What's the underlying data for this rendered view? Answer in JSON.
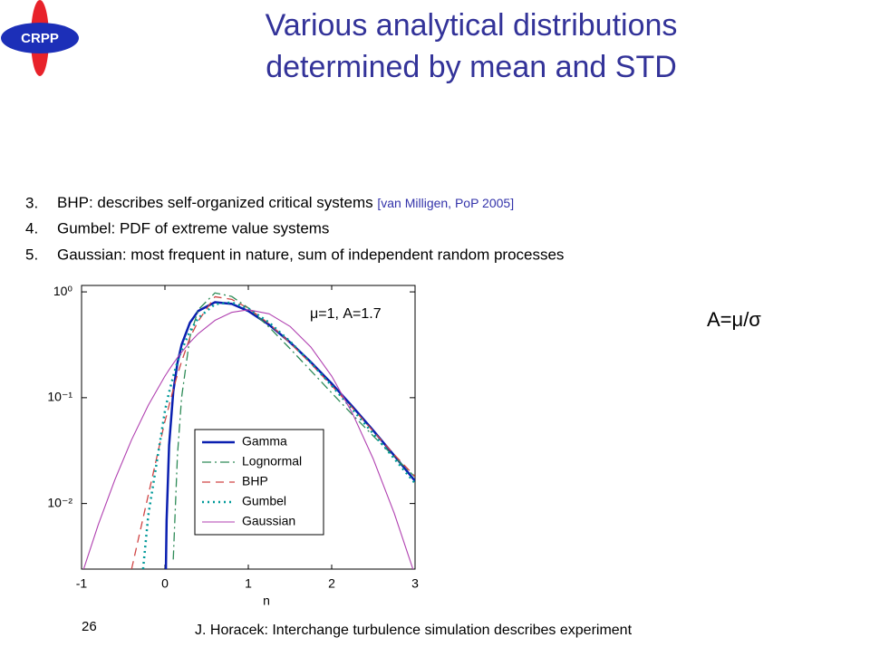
{
  "logo": "CRPP",
  "title": [
    "Various analytical distributions",
    "determined by mean and STD"
  ],
  "items": [
    {
      "number": "3.",
      "text": "BHP: describes self-organized critical systems",
      "ref": "[van Milligen, PoP 2005]"
    },
    {
      "number": "4.",
      "text": "Gumbel: PDF of extreme value systems"
    },
    {
      "number": "5.",
      "text": "Gaussian: most frequent in nature, sum of independent random processes"
    }
  ],
  "formula": "A=μ/σ",
  "footer": {
    "page": "26",
    "text": "J. Horacek: Interchange turbulence simulation describes experiment"
  },
  "chart_data": {
    "type": "line",
    "log_y": true,
    "legend": "lower center",
    "annotation": "μ=1, A=1.7",
    "xlabel": "n",
    "xlim": [
      -1,
      3
    ],
    "xticks": [
      -1,
      0,
      1,
      2,
      3
    ],
    "ylim": [
      0.0024,
      1.15
    ],
    "yticks": [
      {
        "value": 0.01,
        "label": "10⁻²"
      },
      {
        "value": 0.1,
        "label": "10⁻¹"
      },
      {
        "value": 1,
        "label": "10⁰"
      }
    ],
    "x": [
      -1,
      -0.8,
      -0.6,
      -0.4,
      -0.2,
      0,
      0.01,
      0.02,
      0.05,
      0.1,
      0.15,
      0.2,
      0.3,
      0.4,
      0.6,
      0.8,
      1,
      1.25,
      1.5,
      1.75,
      2,
      2.25,
      2.5,
      2.75,
      3
    ],
    "series": [
      {
        "name": "Gamma",
        "color": "#0a1fb0",
        "style": "solid",
        "width": 2.5,
        "values": [
          null,
          null,
          null,
          null,
          null,
          null,
          0.00197,
          0.0069,
          0.0357,
          0.114,
          0.213,
          0.317,
          0.512,
          0.661,
          0.798,
          0.771,
          0.659,
          0.488,
          0.334,
          0.217,
          0.136,
          0.0823,
          0.0488,
          0.0284,
          0.0163
        ]
      },
      {
        "name": "Lognormal",
        "color": "#2e8b57",
        "style": "dashdot",
        "width": 1.3,
        "values": [
          null,
          null,
          null,
          null,
          null,
          null,
          null,
          null,
          null,
          0.00296,
          0.0285,
          0.1008,
          0.375,
          0.679,
          0.978,
          0.906,
          0.705,
          0.464,
          0.291,
          0.18,
          0.111,
          0.069,
          0.0434,
          0.0276,
          0.0178
        ]
      },
      {
        "name": "BHP",
        "color": "#d04545",
        "style": "dashed",
        "width": 1.3,
        "values": [
          null,
          null,
          null,
          0.0024,
          0.012,
          0.06,
          0.064,
          0.068,
          0.085,
          0.12,
          0.165,
          0.22,
          0.37,
          0.53,
          0.9,
          0.85,
          0.7,
          0.5,
          0.33,
          0.21,
          0.13,
          0.08,
          0.048,
          0.029,
          0.018
        ]
      },
      {
        "name": "Gumbel",
        "color": "#009999",
        "style": "dotted",
        "width": 2.5,
        "values": [
          null,
          null,
          null,
          0.00018,
          0.0077,
          0.075,
          0.0818,
          0.0889,
          0.1126,
          0.16,
          0.217,
          0.281,
          0.425,
          0.567,
          0.765,
          0.795,
          0.698,
          0.513,
          0.341,
          0.214,
          0.13,
          0.0773,
          0.0455,
          0.0266,
          0.0155
        ]
      },
      {
        "name": "Gaussian",
        "color": "#b040b0",
        "style": "solid",
        "width": 1.1,
        "values": [
          0.00209,
          0.0063,
          0.0168,
          0.04,
          0.0847,
          0.16,
          0.1645,
          0.169,
          0.184,
          0.21,
          0.239,
          0.269,
          0.334,
          0.403,
          0.538,
          0.64,
          0.678,
          0.62,
          0.472,
          0.301,
          0.16,
          0.0709,
          0.0262,
          0.0081,
          0.00209
        ]
      }
    ]
  }
}
